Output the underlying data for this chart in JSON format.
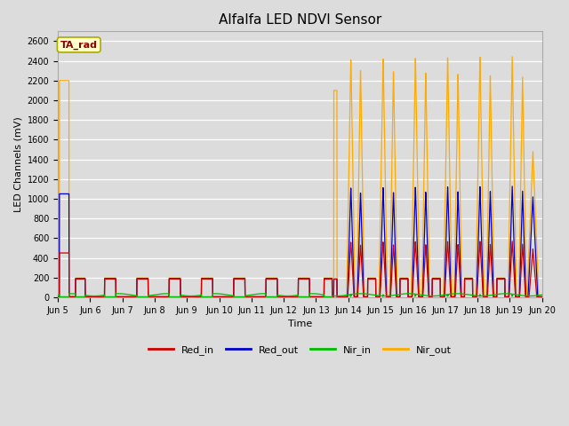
{
  "title": "Alfalfa LED NDVI Sensor",
  "xlabel": "Time",
  "ylabel": "LED Channels (mV)",
  "ylim": [
    0,
    2700
  ],
  "xlim": [
    0,
    15
  ],
  "background_color": "#dcdcdc",
  "plot_bg_color": "#dcdcdc",
  "legend_label": "TA_rad",
  "legend_entries": [
    "Red_in",
    "Red_out",
    "Nir_in",
    "Nir_out"
  ],
  "line_colors": [
    "#cc0000",
    "#0000cc",
    "#00bb00",
    "#ffaa00"
  ],
  "xtick_positions": [
    0,
    1,
    2,
    3,
    4,
    5,
    6,
    7,
    8,
    9,
    10,
    11,
    12,
    13,
    14,
    15
  ],
  "xtick_labels": [
    "Jun 5",
    "Jun 6",
    "Jun 7",
    "Jun 8",
    "Jun 9",
    "Jun 10",
    "Jun 11",
    "Jun 12",
    "Jun 13",
    "Jun 14",
    "Jun 15",
    "Jun 16",
    "Jun 17",
    "Jun 18",
    "Jun 19",
    "Jun 20"
  ],
  "ytick_values": [
    0,
    200,
    400,
    600,
    800,
    1000,
    1200,
    1400,
    1600,
    1800,
    2000,
    2200,
    2400,
    2600
  ]
}
